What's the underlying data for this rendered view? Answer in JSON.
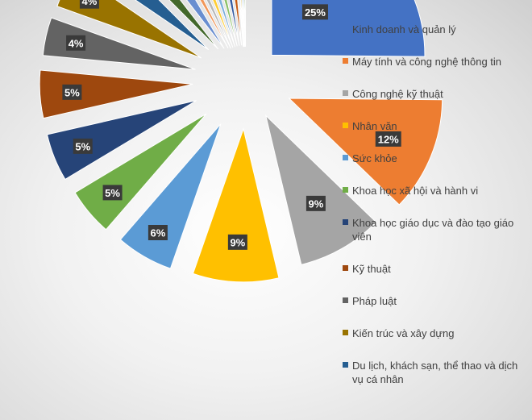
{
  "chart_data": {
    "type": "pie",
    "title": "",
    "label_format": "percent",
    "legend_position": "right",
    "series": [
      {
        "name": "Kinh doanh và quản lý",
        "value": 25,
        "color": "#4472C4"
      },
      {
        "name": "Máy tính và công nghệ thông tin",
        "value": 12,
        "color": "#ED7D31"
      },
      {
        "name": "Công nghệ kỹ thuật",
        "value": 9,
        "color": "#A5A5A5"
      },
      {
        "name": "Nhân văn",
        "value": 9,
        "color": "#FFC000"
      },
      {
        "name": "Sức khỏe",
        "value": 6,
        "color": "#5B9BD5"
      },
      {
        "name": "Khoa học xã hội và hành vi",
        "value": 5,
        "color": "#70AD47"
      },
      {
        "name": "Khoa học giáo dục và đào tạo giáo viên",
        "value": 5,
        "color": "#264478"
      },
      {
        "name": "Kỹ thuật",
        "value": 5,
        "color": "#9E480E"
      },
      {
        "name": "Pháp luật",
        "value": 4,
        "color": "#636363"
      },
      {
        "name": "Kiến trúc và xây dựng",
        "value": 4,
        "color": "#997300"
      },
      {
        "name": "Du lịch, khách sạn, thể thao và dịch vụ cá nhân",
        "value": 3,
        "color": "#255E91"
      },
      {
        "name": "",
        "value": 2,
        "color": "#43682B"
      },
      {
        "name": "",
        "value": 2,
        "color": "#698ED0"
      },
      {
        "name": "",
        "value": 1,
        "color": "#F1975A"
      },
      {
        "name": "",
        "value": 1,
        "color": "#B7B7B7"
      },
      {
        "name": "",
        "value": 1,
        "color": "#FFCD33"
      },
      {
        "name": "",
        "value": 1,
        "color": "#7CAFDD"
      },
      {
        "name": "",
        "value": 1,
        "color": "#8CC168"
      },
      {
        "name": "",
        "value": 1,
        "color": "#335AA1"
      },
      {
        "name": "",
        "value": 1,
        "color": "#C65911"
      },
      {
        "name": "",
        "value": 0,
        "color": "#848484"
      },
      {
        "name": "",
        "value": 0,
        "color": "#CC9A06"
      },
      {
        "name": "",
        "value": 0,
        "color": "#2E75B6"
      },
      {
        "name": "",
        "value": 0,
        "color": "#548235"
      }
    ]
  }
}
